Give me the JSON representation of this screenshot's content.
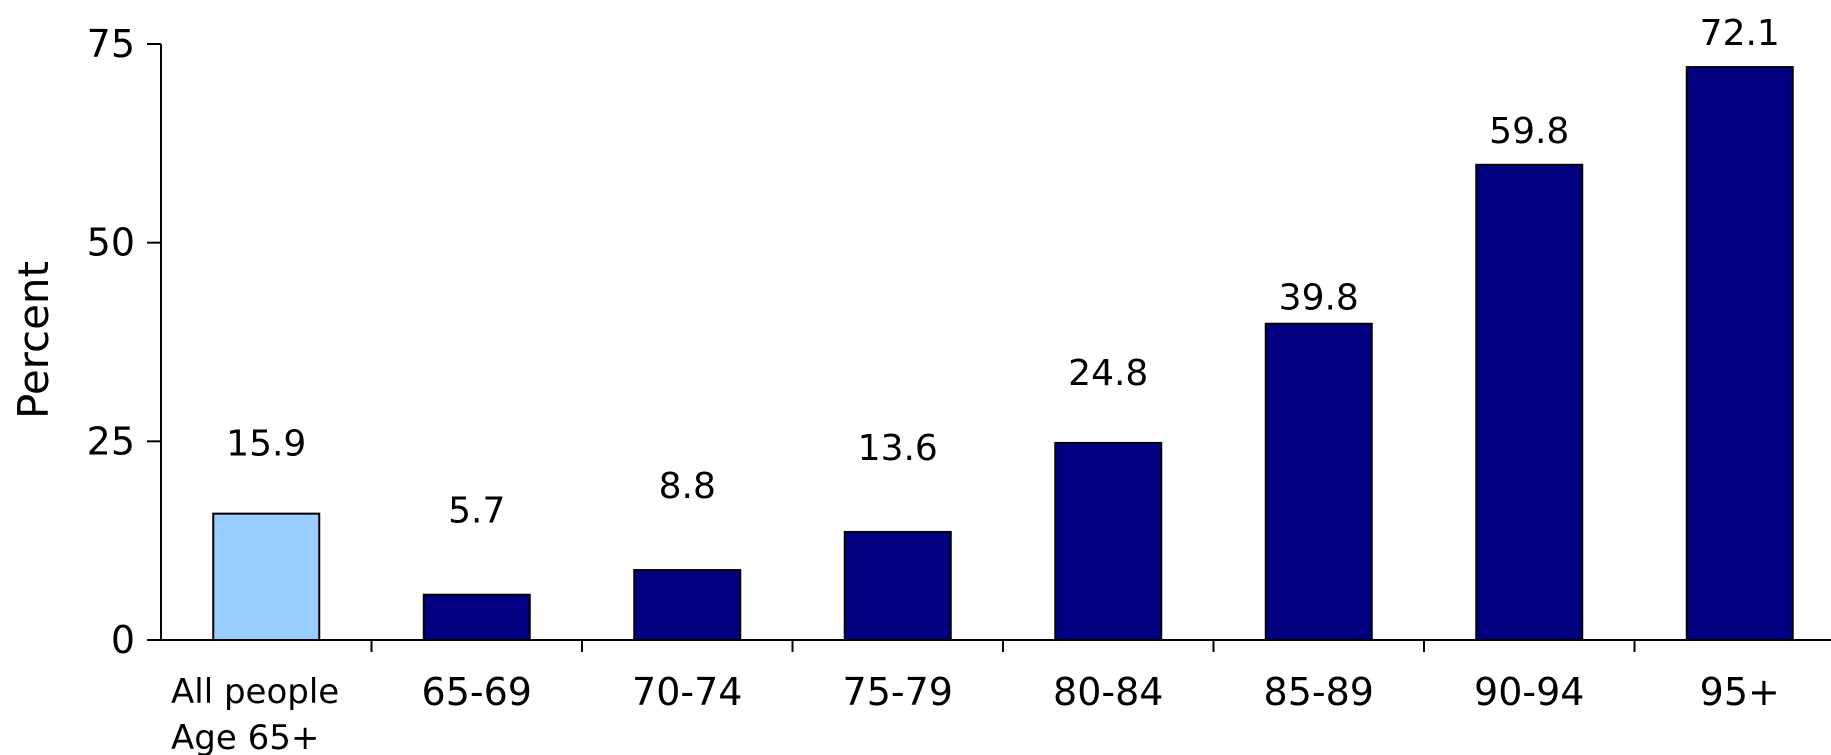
{
  "chart_data": {
    "type": "bar",
    "title": "",
    "xlabel": "",
    "ylabel": "Percent",
    "ylim": [
      0,
      75
    ],
    "yticks": [
      0,
      25,
      50,
      75
    ],
    "grid": false,
    "categories": [
      [
        "All people",
        "Age 65+"
      ],
      [
        "65-69"
      ],
      [
        "70-74"
      ],
      [
        "75-79"
      ],
      [
        "80-84"
      ],
      [
        "85-89"
      ],
      [
        "90-94"
      ],
      [
        "95+"
      ]
    ],
    "values": [
      15.9,
      5.7,
      8.8,
      13.6,
      24.8,
      39.8,
      59.8,
      72.1
    ],
    "value_labels": [
      "15.9",
      "5.7",
      "8.8",
      "13.6",
      "24.8",
      "39.8",
      "59.8",
      "72.1"
    ],
    "colors": {
      "highlight": "#99ccff",
      "default": "#000080",
      "outline": "#000000"
    },
    "highlight_index": 0
  }
}
